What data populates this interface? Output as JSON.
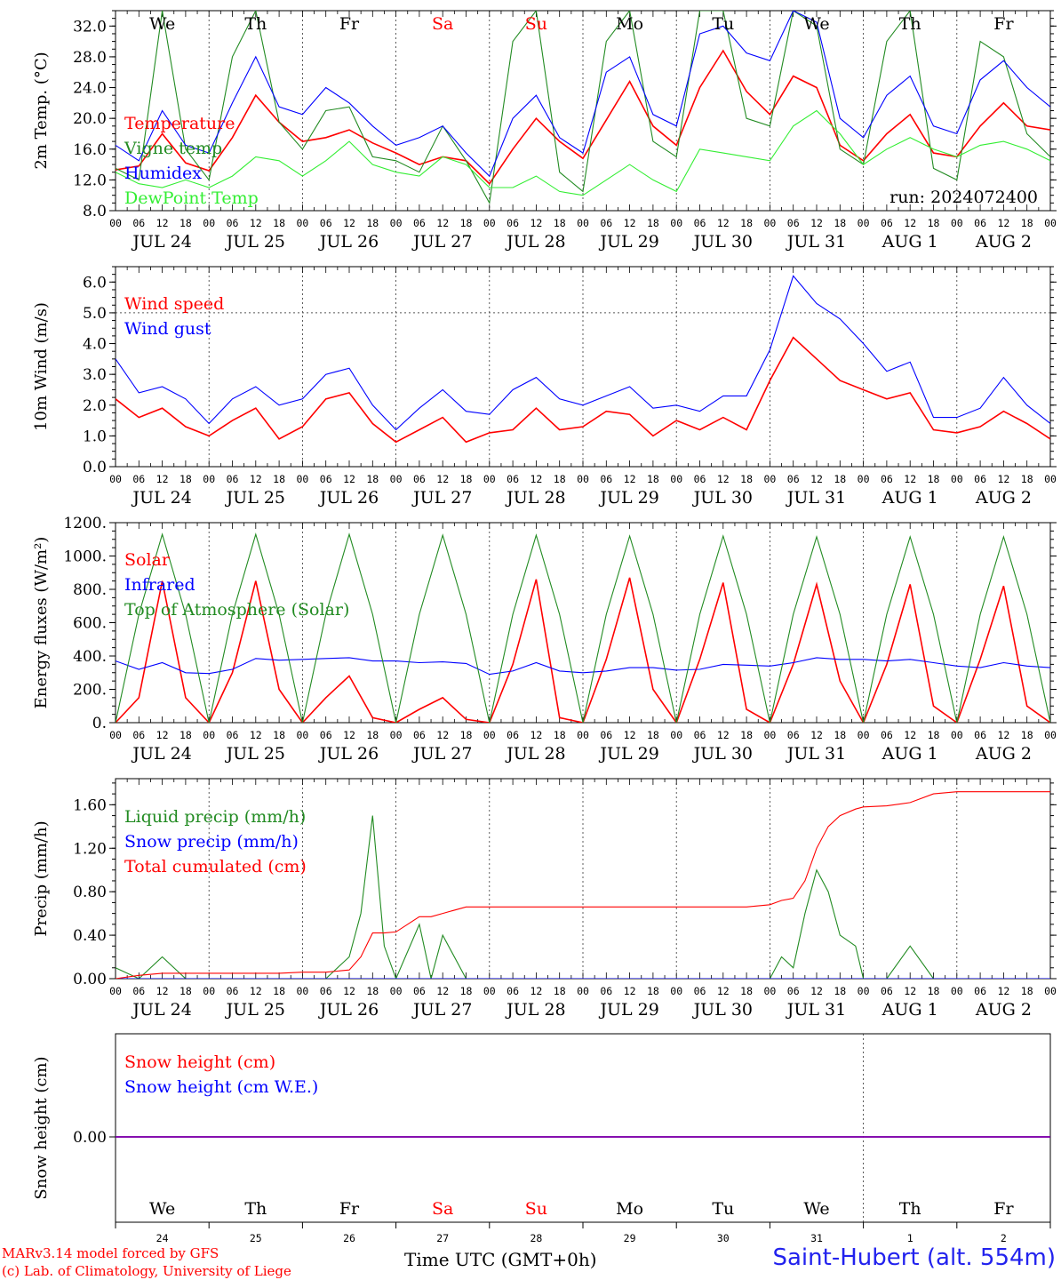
{
  "days": {
    "weekday_top": [
      "We",
      "Th",
      "Fr",
      "Sa",
      "Su",
      "Mo",
      "Tu",
      "We",
      "Th",
      "Fr"
    ],
    "weekday_bottom": [
      "We",
      "Th",
      "Fr",
      "Sa",
      "Su",
      "Mo",
      "Tu",
      "We",
      "Th",
      "Fr"
    ],
    "weekend_color": "#ff0000",
    "dates": [
      "JUL 24",
      "JUL 25",
      "JUL 26",
      "JUL 27",
      "JUL 28",
      "JUL 29",
      "JUL 30",
      "JUL 31",
      "AUG  1",
      "AUG  2"
    ],
    "day_numbers": [
      "24",
      "25",
      "26",
      "27",
      "28",
      "29",
      "30",
      "31",
      "1",
      "2"
    ],
    "hour_ticks": [
      "00",
      "06",
      "12",
      "18"
    ]
  },
  "footer": {
    "model": "MARv3.14 model forced by GFS",
    "lab": "(c) Lab. of Climatology, University of Liege",
    "time_label": "Time UTC (GMT+0h)",
    "station": "Saint-Hubert (alt. 554m)"
  },
  "colors": {
    "red": "#ff0000",
    "green": "#228b22",
    "blue": "#0000ff",
    "lightgreen": "#33ee33",
    "purple": "#8800aa"
  },
  "chart_data": [
    {
      "id": "temp",
      "type": "line",
      "ylabel": "2m Temp. (°C)",
      "ylim": [
        8,
        34
      ],
      "yticks": [
        "8.0",
        "12.0",
        "16.0",
        "20.0",
        "24.0",
        "28.0",
        "32.0"
      ],
      "annotation": "run: 2024072400",
      "legend": [
        "Temperature",
        "Vigne temp",
        "Humidex",
        "DewPoint Temp"
      ],
      "x_hours": [
        0,
        6,
        12,
        18,
        24,
        30,
        36,
        42,
        48,
        54,
        60,
        66,
        72,
        78,
        84,
        90,
        96,
        102,
        108,
        114,
        120,
        126,
        132,
        138,
        144,
        150,
        156,
        162,
        168,
        174,
        180,
        186,
        192,
        198,
        204,
        210,
        216,
        222,
        228,
        234,
        240
      ],
      "series": [
        {
          "name": "Temperature",
          "color": "red",
          "values": [
            13.3,
            13.8,
            18.0,
            14.2,
            13.2,
            17.5,
            23.0,
            19.5,
            17.0,
            17.5,
            18.5,
            16.8,
            15.5,
            14.0,
            15.0,
            14.5,
            11.5,
            16.0,
            20.0,
            17.0,
            14.8,
            19.8,
            24.8,
            19.0,
            16.5,
            24.0,
            28.8,
            23.5,
            20.5,
            25.5,
            24.0,
            16.5,
            14.5,
            18.0,
            20.5,
            15.5,
            15.0,
            19.0,
            22.0,
            19.0,
            18.5
          ]
        },
        {
          "name": "Vigne temp",
          "color": "green",
          "values": [
            13.5,
            12.0,
            34.0,
            16.0,
            12.0,
            28.0,
            34.0,
            19.5,
            16.0,
            21.0,
            21.5,
            15.0,
            14.5,
            13.0,
            19.0,
            14.5,
            9.0,
            30.0,
            34.0,
            13.0,
            10.5,
            30.0,
            34.0,
            17.0,
            15.0,
            34.0,
            34.0,
            20.0,
            19.0,
            34.0,
            32.0,
            16.0,
            14.0,
            30.0,
            34.0,
            13.5,
            12.0,
            30.0,
            28.0,
            18.0,
            15.0
          ]
        },
        {
          "name": "Humidex",
          "color": "blue",
          "values": [
            16.5,
            14.5,
            21.0,
            16.5,
            15.5,
            22.0,
            28.0,
            21.5,
            20.5,
            24.0,
            22.0,
            19.0,
            16.5,
            17.5,
            19.0,
            15.5,
            12.5,
            20.0,
            23.0,
            17.5,
            15.5,
            26.0,
            28.0,
            20.5,
            19.0,
            31.0,
            32.0,
            28.5,
            27.5,
            34.0,
            32.5,
            20.0,
            17.5,
            23.0,
            25.5,
            19.0,
            18.0,
            25.0,
            27.5,
            24.0,
            21.5
          ]
        },
        {
          "name": "DewPoint Temp",
          "color": "lightgreen",
          "values": [
            13.0,
            11.5,
            11.0,
            12.0,
            11.0,
            12.5,
            15.0,
            14.5,
            12.5,
            14.5,
            17.0,
            14.0,
            13.0,
            12.5,
            15.0,
            14.0,
            11.0,
            11.0,
            12.5,
            10.5,
            10.0,
            12.0,
            14.0,
            12.0,
            10.5,
            16.0,
            15.5,
            15.0,
            14.5,
            19.0,
            21.0,
            18.0,
            14.0,
            16.0,
            17.5,
            16.0,
            15.0,
            16.5,
            17.0,
            16.0,
            14.5
          ]
        }
      ]
    },
    {
      "id": "wind",
      "type": "line",
      "ylabel": "10m Wind (m/s)",
      "ylim": [
        0,
        6.5
      ],
      "yticks": [
        "0.0",
        "1.0",
        "2.0",
        "3.0",
        "4.0",
        "5.0",
        "6.0"
      ],
      "legend": [
        "Wind speed",
        "Wind gust"
      ],
      "x_hours": [
        0,
        6,
        12,
        18,
        24,
        30,
        36,
        42,
        48,
        54,
        60,
        66,
        72,
        78,
        84,
        90,
        96,
        102,
        108,
        114,
        120,
        126,
        132,
        138,
        144,
        150,
        156,
        162,
        168,
        174,
        180,
        186,
        192,
        198,
        204,
        210,
        216,
        222,
        228,
        234,
        240
      ],
      "series": [
        {
          "name": "Wind speed",
          "color": "red",
          "values": [
            2.2,
            1.6,
            1.9,
            1.3,
            1.0,
            1.5,
            1.9,
            0.9,
            1.3,
            2.2,
            2.4,
            1.4,
            0.8,
            1.2,
            1.6,
            0.8,
            1.1,
            1.2,
            1.9,
            1.2,
            1.3,
            1.8,
            1.7,
            1.0,
            1.5,
            1.2,
            1.6,
            1.2,
            2.8,
            4.2,
            3.5,
            2.8,
            2.5,
            2.2,
            2.4,
            1.2,
            1.1,
            1.3,
            1.8,
            1.4,
            0.9
          ]
        },
        {
          "name": "Wind gust",
          "color": "blue",
          "values": [
            3.5,
            2.4,
            2.6,
            2.2,
            1.4,
            2.2,
            2.6,
            2.0,
            2.2,
            3.0,
            3.2,
            2.0,
            1.2,
            1.9,
            2.5,
            1.8,
            1.7,
            2.5,
            2.9,
            2.2,
            2.0,
            2.3,
            2.6,
            1.9,
            2.0,
            1.8,
            2.3,
            2.3,
            3.8,
            6.2,
            5.3,
            4.8,
            4.0,
            3.1,
            3.4,
            1.6,
            1.6,
            1.9,
            2.9,
            2.0,
            1.4
          ]
        }
      ],
      "reference_line": 5.0
    },
    {
      "id": "energy",
      "type": "line",
      "ylabel": "Energy fluxes (W/m²)",
      "ylim": [
        0,
        1200
      ],
      "yticks": [
        "0.",
        "200.",
        "400.",
        "600.",
        "800.",
        "1000.",
        "1200."
      ],
      "legend": [
        "Solar",
        "Infrared",
        "Top of Atmosphere (Solar)"
      ],
      "x_hours": [
        0,
        6,
        12,
        18,
        24,
        30,
        36,
        42,
        48,
        54,
        60,
        66,
        72,
        78,
        84,
        90,
        96,
        102,
        108,
        114,
        120,
        126,
        132,
        138,
        144,
        150,
        156,
        162,
        168,
        174,
        180,
        186,
        192,
        198,
        204,
        210,
        216,
        222,
        228,
        234,
        240
      ],
      "series": [
        {
          "name": "Solar",
          "color": "red",
          "values": [
            0,
            150,
            850,
            150,
            0,
            300,
            850,
            200,
            0,
            150,
            280,
            30,
            0,
            80,
            150,
            20,
            0,
            350,
            860,
            30,
            0,
            380,
            870,
            200,
            0,
            380,
            840,
            80,
            0,
            350,
            830,
            250,
            0,
            350,
            830,
            100,
            0,
            380,
            820,
            100,
            0
          ]
        },
        {
          "name": "Infrared",
          "color": "blue",
          "values": [
            370,
            320,
            360,
            300,
            295,
            320,
            385,
            375,
            380,
            385,
            390,
            370,
            370,
            360,
            365,
            355,
            290,
            310,
            360,
            310,
            300,
            310,
            330,
            330,
            315,
            320,
            350,
            345,
            340,
            360,
            390,
            380,
            380,
            370,
            380,
            360,
            340,
            330,
            360,
            340,
            330
          ]
        },
        {
          "name": "Top of Atmosphere (Solar)",
          "color": "green",
          "values": [
            0,
            650,
            1130,
            650,
            0,
            650,
            1130,
            650,
            0,
            650,
            1130,
            650,
            0,
            650,
            1125,
            650,
            0,
            650,
            1125,
            650,
            0,
            650,
            1120,
            650,
            0,
            650,
            1120,
            650,
            0,
            650,
            1115,
            650,
            0,
            650,
            1115,
            650,
            0,
            650,
            1115,
            650,
            0
          ]
        }
      ]
    },
    {
      "id": "precip",
      "type": "line",
      "ylabel": "Precip (mm/h)",
      "ylim": [
        0,
        1.84
      ],
      "yticks": [
        "0.00",
        "0.40",
        "0.80",
        "1.20",
        "1.60"
      ],
      "legend": [
        "Liquid precip (mm/h)",
        "Snow precip (mm/h)",
        "Total cumulated (cm)"
      ],
      "x_hours": [
        0,
        6,
        12,
        18,
        24,
        30,
        36,
        42,
        48,
        54,
        60,
        63,
        66,
        69,
        72,
        78,
        81,
        84,
        90,
        96,
        102,
        108,
        114,
        120,
        126,
        132,
        138,
        144,
        150,
        156,
        162,
        168,
        171,
        174,
        177,
        180,
        183,
        186,
        190,
        192,
        198,
        204,
        210,
        216,
        222,
        228,
        234,
        240
      ],
      "series": [
        {
          "name": "Liquid precip (mm/h)",
          "color": "green",
          "values": [
            0.1,
            0.0,
            0.2,
            0.0,
            0.0,
            0.0,
            0.0,
            0.0,
            0.0,
            0.0,
            0.2,
            0.6,
            1.5,
            0.3,
            0.0,
            0.5,
            0.0,
            0.4,
            0.0,
            0.0,
            0.0,
            0.0,
            0.0,
            0.0,
            0.0,
            0.0,
            0.0,
            0.0,
            0.0,
            0.0,
            0.0,
            0.0,
            0.2,
            0.1,
            0.6,
            1.0,
            0.8,
            0.4,
            0.3,
            0.0,
            0.0,
            0.3,
            0.0,
            0.0,
            0.0,
            0.0,
            0.0,
            0.0
          ]
        },
        {
          "name": "Snow precip (mm/h)",
          "color": "blue",
          "values": [
            0,
            0,
            0,
            0,
            0,
            0,
            0,
            0,
            0,
            0,
            0,
            0,
            0,
            0,
            0,
            0,
            0,
            0,
            0,
            0,
            0,
            0,
            0,
            0,
            0,
            0,
            0,
            0,
            0,
            0,
            0,
            0,
            0,
            0,
            0,
            0,
            0,
            0,
            0,
            0,
            0,
            0,
            0,
            0,
            0,
            0,
            0,
            0
          ]
        },
        {
          "name": "Total cumulated (cm)",
          "color": "red",
          "values": [
            0.0,
            0.03,
            0.05,
            0.05,
            0.05,
            0.05,
            0.05,
            0.05,
            0.06,
            0.06,
            0.08,
            0.2,
            0.42,
            0.42,
            0.43,
            0.57,
            0.57,
            0.6,
            0.66,
            0.66,
            0.66,
            0.66,
            0.66,
            0.66,
            0.66,
            0.66,
            0.66,
            0.66,
            0.66,
            0.66,
            0.66,
            0.68,
            0.72,
            0.74,
            0.9,
            1.2,
            1.4,
            1.5,
            1.56,
            1.58,
            1.59,
            1.62,
            1.7,
            1.72,
            1.72,
            1.72,
            1.72,
            1.72
          ]
        }
      ]
    },
    {
      "id": "snow",
      "type": "line",
      "ylabel": "Snow height (cm)",
      "yticks": [
        "0.00"
      ],
      "legend": [
        "Snow height (cm)",
        "Snow height (cm W.E.)"
      ],
      "x_hours": [
        0,
        240
      ],
      "series": [
        {
          "name": "Snow height (cm)",
          "color": "red",
          "values": [
            0,
            0
          ]
        },
        {
          "name": "Snow height (cm W.E.)",
          "color": "blue",
          "values": [
            0,
            0
          ]
        }
      ]
    }
  ]
}
